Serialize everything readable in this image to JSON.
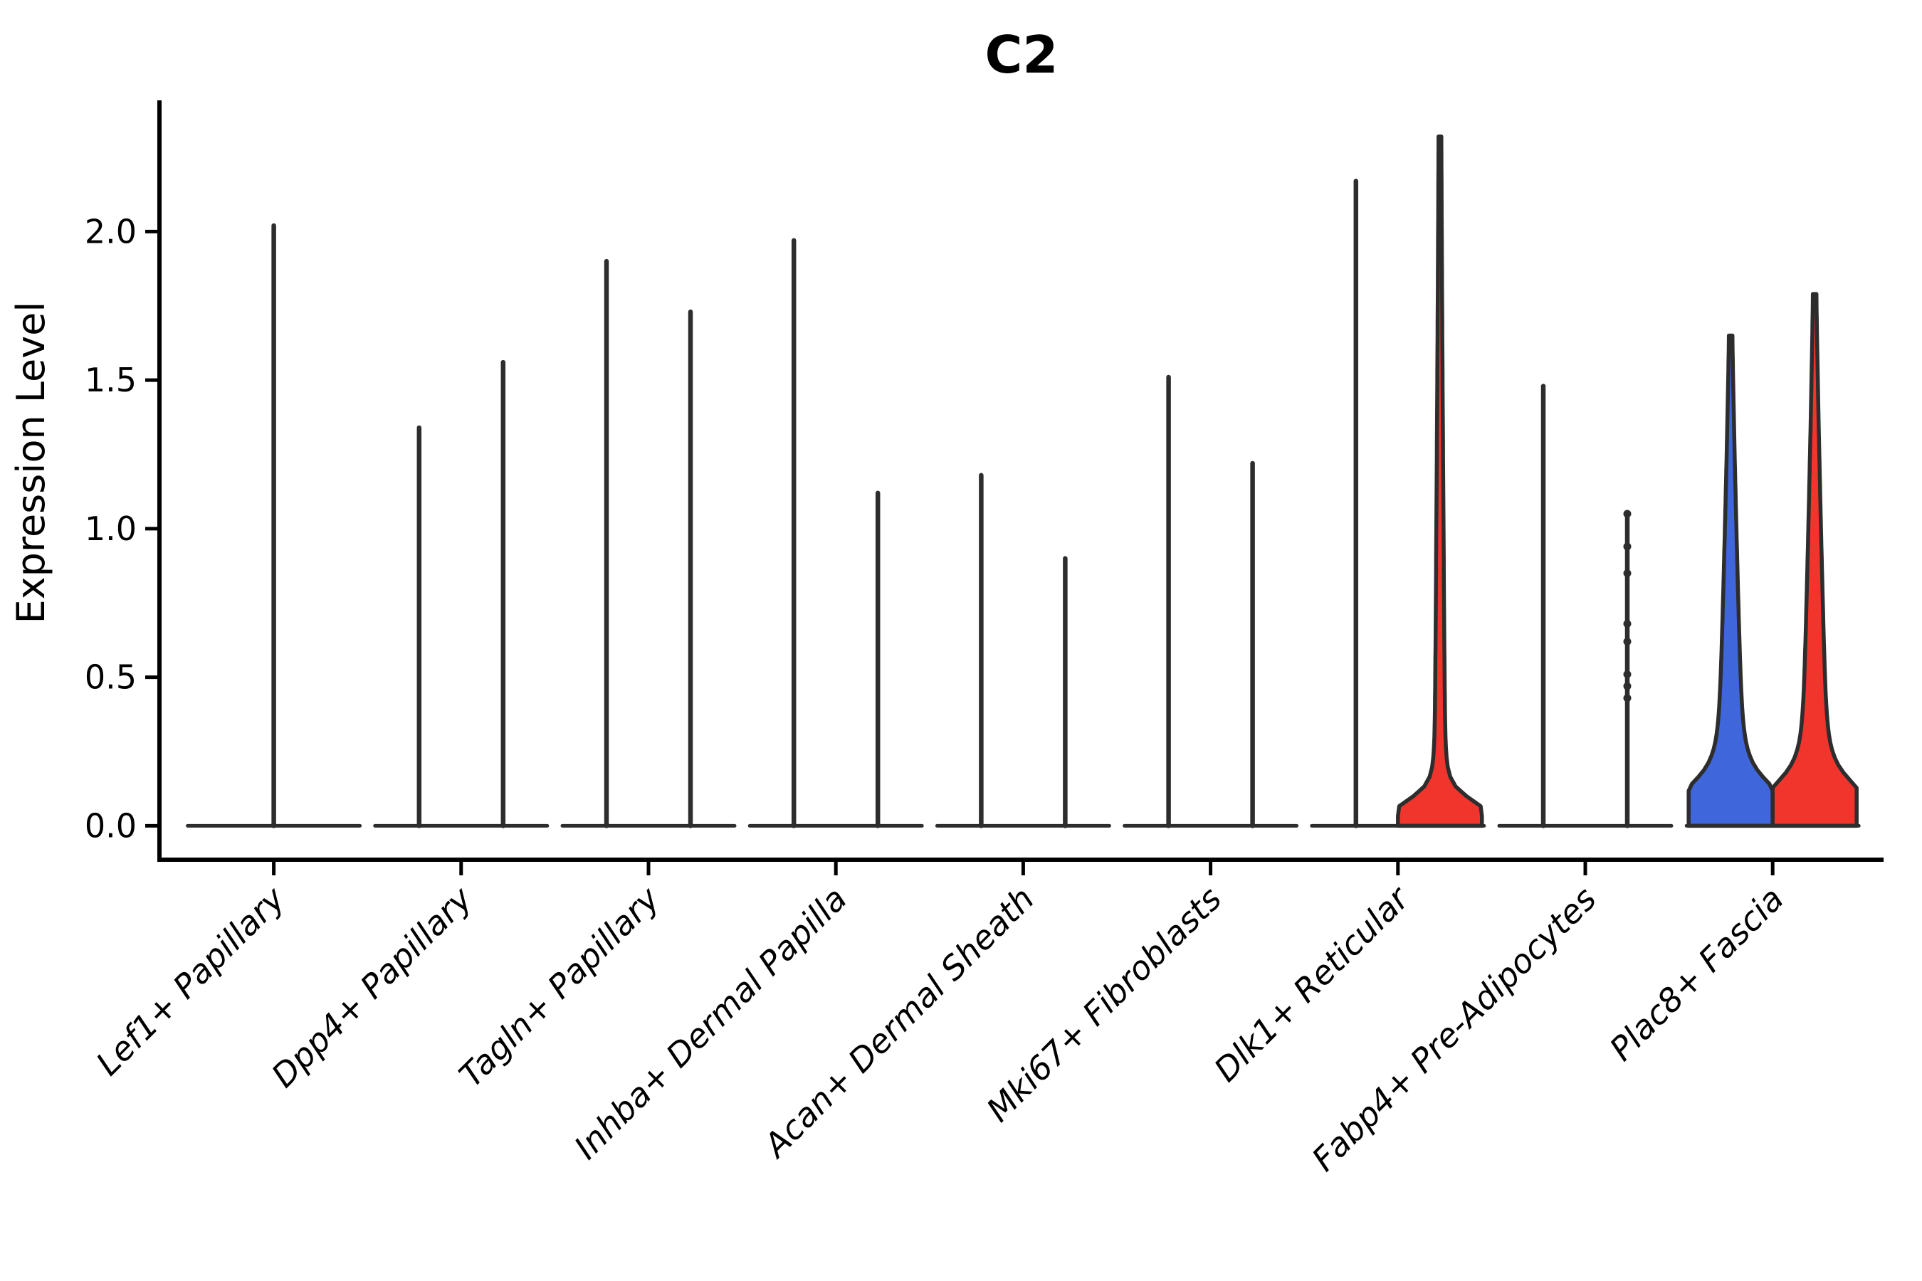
{
  "chart_data": {
    "type": "violin",
    "title": "C2",
    "xlabel": "",
    "ylabel": "Expression Level",
    "ylim": [
      -0.11,
      2.44
    ],
    "yticks": [
      0.0,
      0.5,
      1.0,
      1.5,
      2.0
    ],
    "ytick_labels": [
      "0.0",
      "0.5",
      "1.0",
      "1.5",
      "2.0"
    ],
    "grid": "off",
    "legend": "none",
    "colors": {
      "thin_violin_stroke": "#2d2d2d",
      "violin_outline": "#2d2d2d",
      "blue_fill": "#3f66da",
      "red_fill": "#f2352c",
      "axis": "#000000",
      "background": "#ffffff"
    },
    "categories": [
      {
        "label": "Lef1+ Papillary",
        "violins": [
          {
            "position": "center",
            "peak": 2.02,
            "style": "thin"
          }
        ]
      },
      {
        "label": "Dpp4+ Papillary",
        "violins": [
          {
            "position": "left",
            "peak": 1.34,
            "style": "thin"
          },
          {
            "position": "right",
            "peak": 1.56,
            "style": "thin"
          }
        ]
      },
      {
        "label": "Tagln+ Papillary",
        "violins": [
          {
            "position": "left",
            "peak": 1.9,
            "style": "thin"
          },
          {
            "position": "right",
            "peak": 1.73,
            "style": "thin"
          }
        ]
      },
      {
        "label": "Inhba+ Dermal Papilla",
        "violins": [
          {
            "position": "left",
            "peak": 1.97,
            "style": "thin"
          },
          {
            "position": "right",
            "peak": 1.12,
            "style": "thin"
          }
        ]
      },
      {
        "label": "Acan+ Dermal Sheath",
        "violins": [
          {
            "position": "left",
            "peak": 1.18,
            "style": "thin"
          },
          {
            "position": "right",
            "peak": 0.9,
            "style": "thin"
          }
        ]
      },
      {
        "label": "Mki67+ Fibroblasts",
        "violins": [
          {
            "position": "left",
            "peak": 1.51,
            "style": "thin"
          },
          {
            "position": "right",
            "peak": 1.22,
            "style": "thin"
          }
        ]
      },
      {
        "label": "Dlk1+ Reticular",
        "violins": [
          {
            "position": "left",
            "peak": 2.17,
            "style": "thin"
          },
          {
            "position": "right",
            "peak": 2.32,
            "style": "filled",
            "fill": "red",
            "body": "narrow-neck"
          }
        ]
      },
      {
        "label": "Fabp4+ Pre-Adipocytes",
        "violins": [
          {
            "position": "left",
            "peak": 1.48,
            "style": "thin"
          },
          {
            "position": "right",
            "peak": 1.05,
            "style": "thin",
            "points": [
              1.05,
              0.94,
              0.85,
              0.68,
              0.62,
              0.51,
              0.47,
              0.43
            ]
          }
        ]
      },
      {
        "label": "Plac8+ Fascia",
        "violins": [
          {
            "position": "left",
            "peak": 1.65,
            "style": "filled",
            "fill": "blue",
            "body": "wide-neck"
          },
          {
            "position": "right",
            "peak": 1.79,
            "style": "filled",
            "fill": "red",
            "body": "wide-neck"
          }
        ]
      }
    ]
  }
}
